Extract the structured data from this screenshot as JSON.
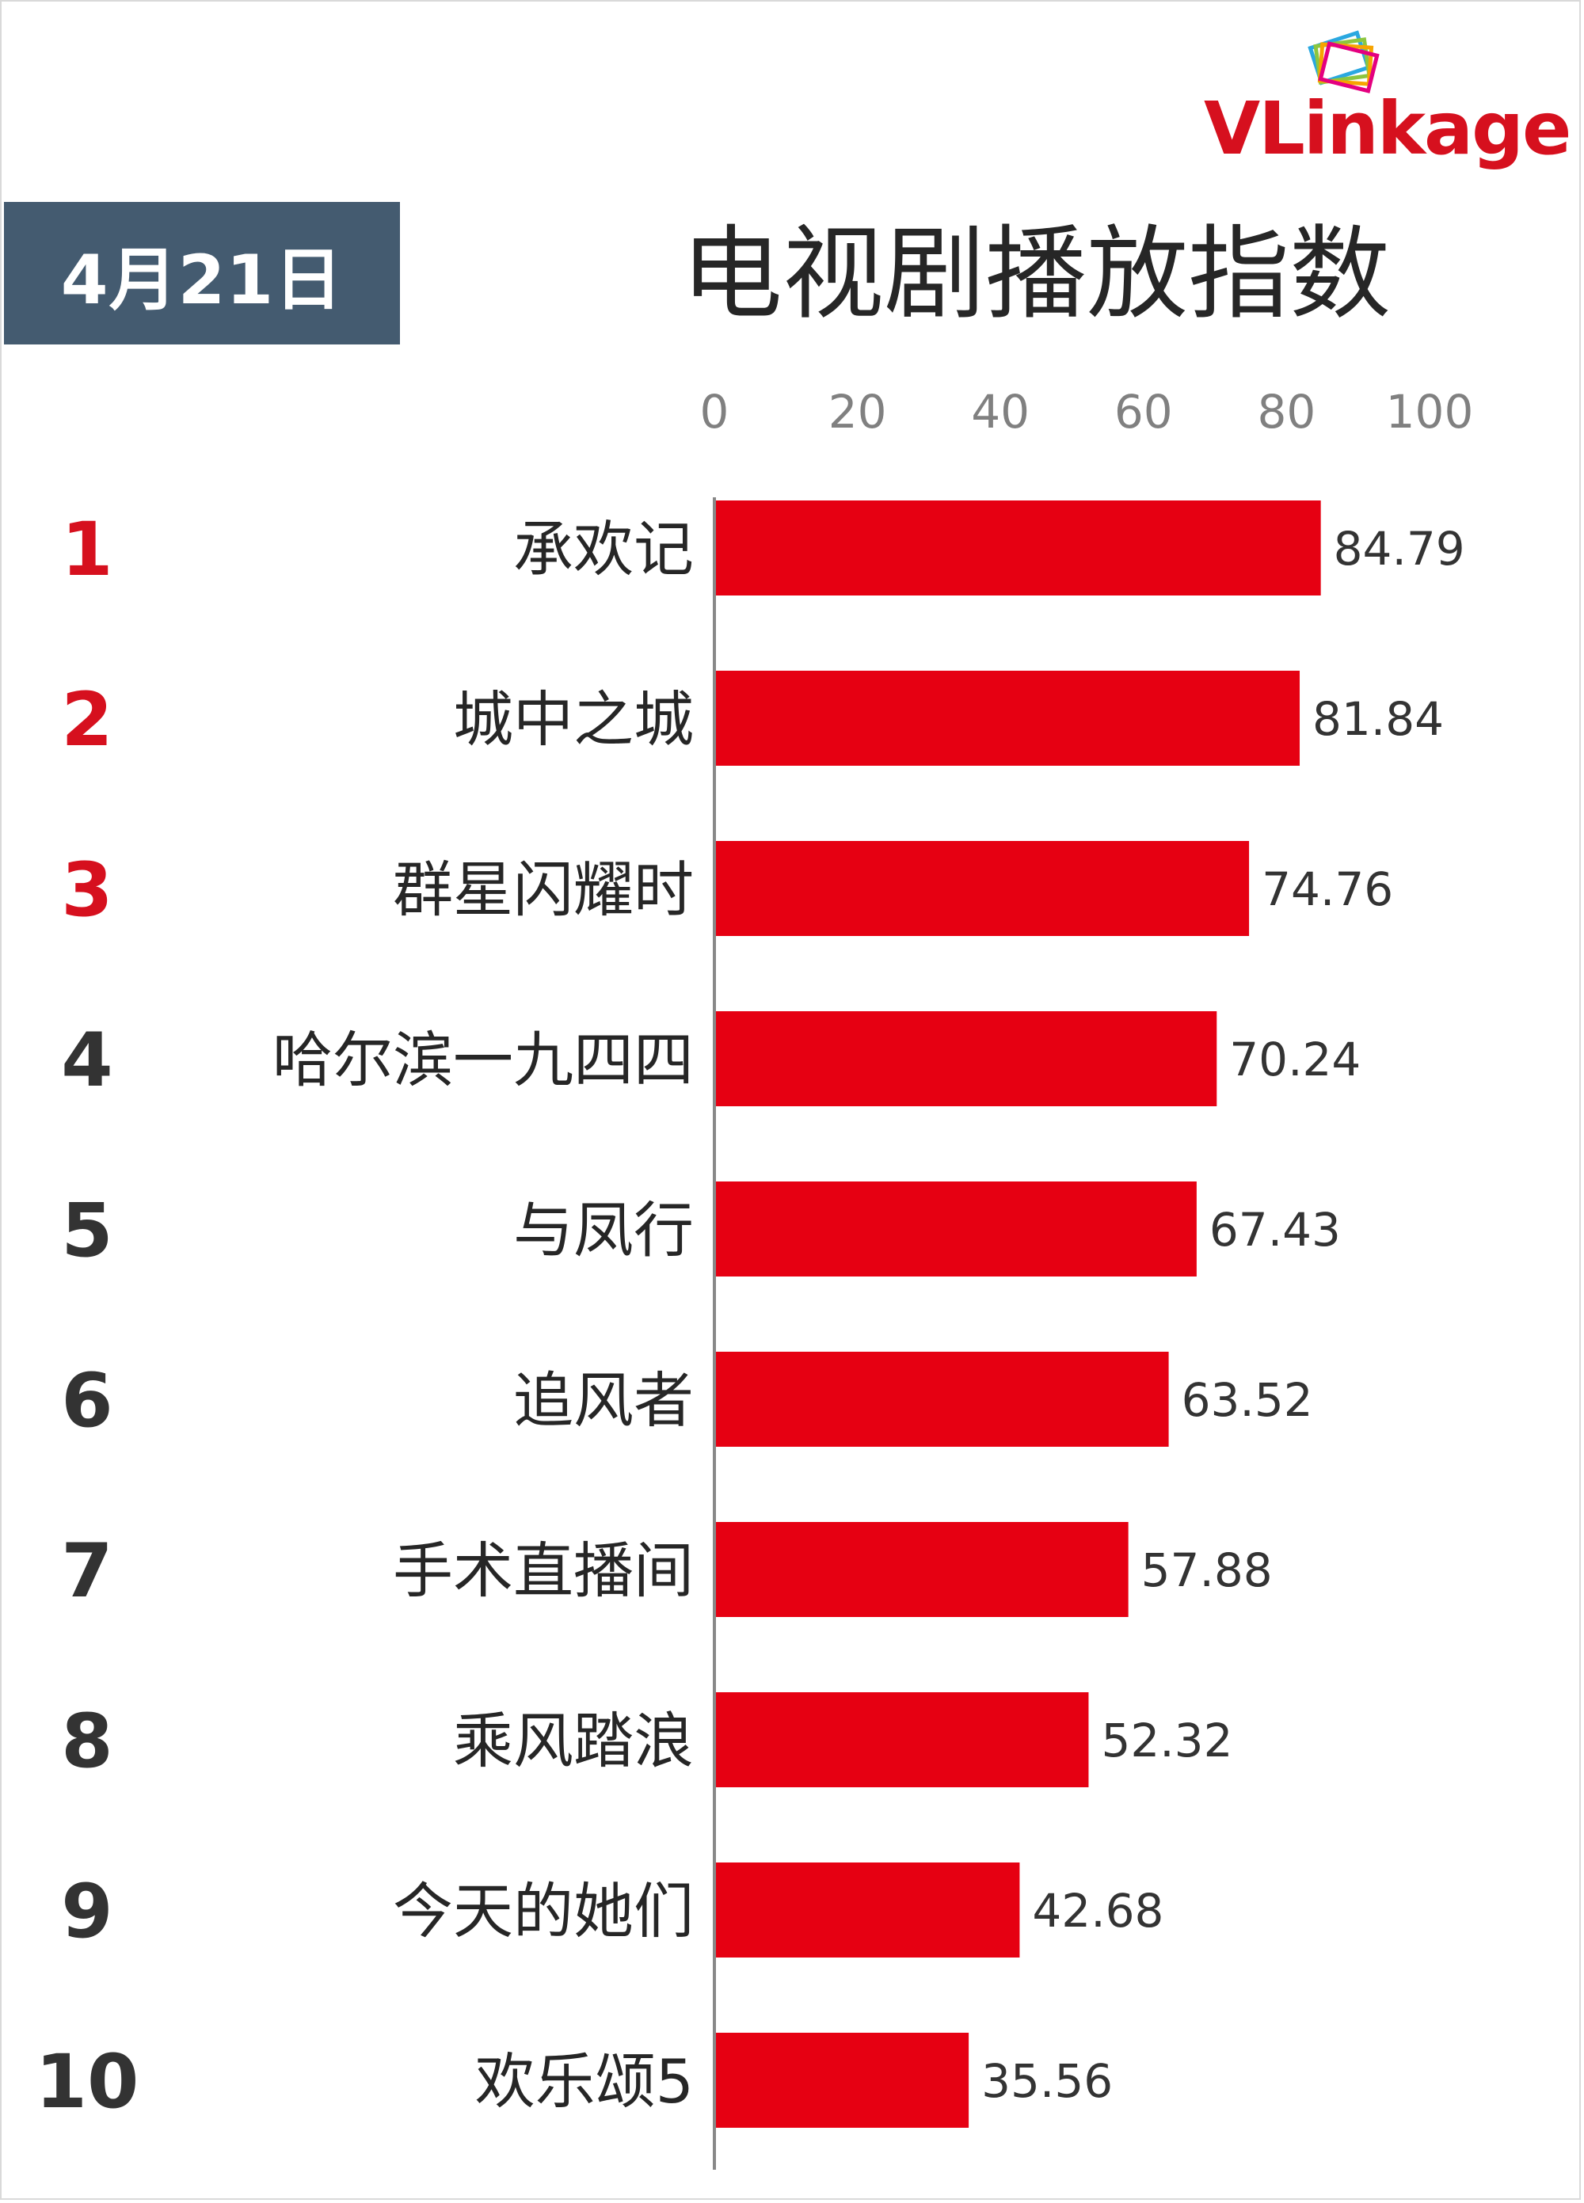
{
  "header": {
    "date": "4月21日",
    "title": "电视剧播放指数",
    "logo": "VLinkage"
  },
  "colors": {
    "bar": "#e60012",
    "rank_top": "#d6101e",
    "rank_other": "#333333",
    "date_box": "#445b70",
    "axis": "#888888",
    "tick_text": "#808080",
    "label_text": "#262626"
  },
  "chart_data": {
    "type": "bar",
    "orientation": "horizontal",
    "categories": [
      "承欢记",
      "城中之城",
      "群星闪耀时",
      "哈尔滨一九四四",
      "与凤行",
      "追风者",
      "手术直播间",
      "乘风踏浪",
      "今天的她们",
      "欢乐颂5"
    ],
    "ranks": [
      "1",
      "2",
      "3",
      "4",
      "5",
      "6",
      "7",
      "8",
      "9",
      "10"
    ],
    "values": [
      84.79,
      81.84,
      74.76,
      70.24,
      67.43,
      63.52,
      57.88,
      52.32,
      42.68,
      35.56
    ],
    "value_labels": [
      "84.79",
      "81.84",
      "74.76",
      "70.24",
      "67.43",
      "63.52",
      "57.88",
      "52.32",
      "42.68",
      "35.56"
    ],
    "xlim": [
      0,
      100
    ],
    "ticks": [
      "0",
      "20",
      "40",
      "60",
      "80",
      "100"
    ],
    "title": "电视剧播放指数",
    "xlabel": "",
    "ylabel": "",
    "grid": false,
    "legend": "none"
  }
}
